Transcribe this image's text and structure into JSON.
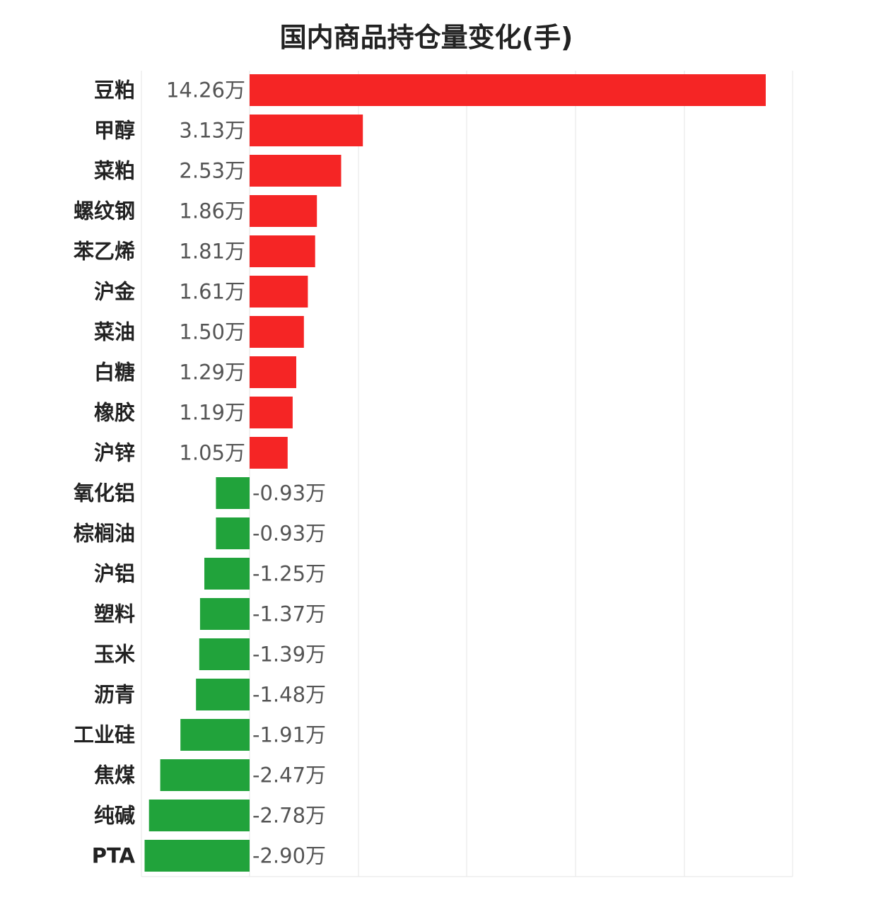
{
  "chart_data": {
    "type": "bar",
    "orientation": "horizontal",
    "title": "国内商品持仓量变化(手)",
    "unit_suffix": "万",
    "xlim": [
      -2.9,
      14.26
    ],
    "grid": true,
    "categories": [
      "豆粕",
      "甲醇",
      "菜粕",
      "螺纹钢",
      "苯乙烯",
      "沪金",
      "菜油",
      "白糖",
      "橡胶",
      "沪锌",
      "氧化铝",
      "棕榈油",
      "沪铝",
      "塑料",
      "玉米",
      "沥青",
      "工业硅",
      "焦煤",
      "纯碱",
      "PTA"
    ],
    "values": [
      14.26,
      3.13,
      2.53,
      1.86,
      1.81,
      1.61,
      1.5,
      1.29,
      1.19,
      1.05,
      -0.93,
      -0.93,
      -1.25,
      -1.37,
      -1.39,
      -1.48,
      -1.91,
      -2.47,
      -2.78,
      -2.9
    ],
    "value_labels": [
      "14.26万",
      "3.13万",
      "2.53万",
      "1.86万",
      "1.81万",
      "1.61万",
      "1.50万",
      "1.29万",
      "1.19万",
      "1.05万",
      "-0.93万",
      "-0.93万",
      "-1.25万",
      "-1.37万",
      "-1.39万",
      "-1.48万",
      "-1.91万",
      "-2.47万",
      "-2.78万",
      "-2.90万"
    ],
    "colors": {
      "positive": "#f52525",
      "negative": "#21a33b",
      "grid": "#e6e6e6"
    }
  }
}
